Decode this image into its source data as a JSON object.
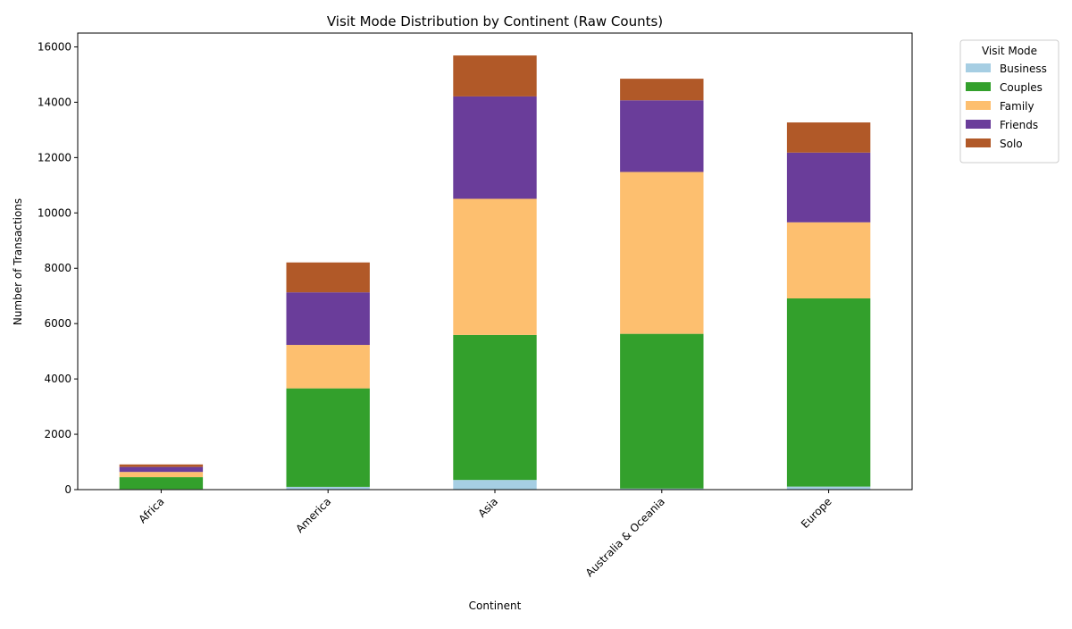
{
  "chart_data": {
    "type": "bar",
    "stacked": true,
    "title": "Visit Mode Distribution by Continent (Raw Counts)",
    "xlabel": "Continent",
    "ylabel": "Number of Transactions",
    "ylim": [
      0,
      16500
    ],
    "yticks": [
      0,
      2000,
      4000,
      6000,
      8000,
      10000,
      12000,
      14000,
      16000
    ],
    "categories": [
      "Africa",
      "America",
      "Asia",
      "Australia & Oceania",
      "Europe"
    ],
    "series": [
      {
        "name": "Business",
        "color": "#a6cee3",
        "values": [
          20,
          100,
          350,
          40,
          110
        ]
      },
      {
        "name": "Couples",
        "color": "#33a02c",
        "values": [
          430,
          3560,
          5240,
          5590,
          6800
        ]
      },
      {
        "name": "Family",
        "color": "#fdbf6f",
        "values": [
          190,
          1570,
          4920,
          5850,
          2750
        ]
      },
      {
        "name": "Friends",
        "color": "#6a3d9a",
        "values": [
          180,
          1900,
          3700,
          2590,
          2520
        ]
      },
      {
        "name": "Solo",
        "color": "#b15928",
        "values": [
          90,
          1080,
          1480,
          780,
          1090
        ]
      }
    ],
    "legend": {
      "title": "Visit Mode",
      "position": "outside-top-right"
    },
    "grid": false
  }
}
